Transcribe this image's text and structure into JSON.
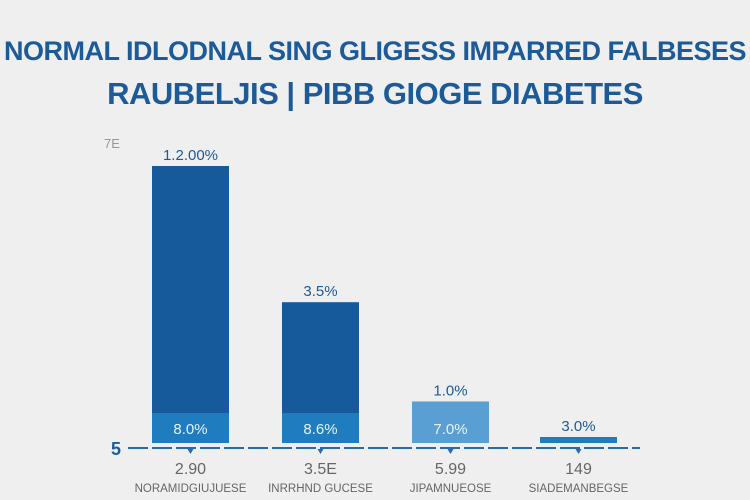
{
  "chart_data": {
    "type": "bar",
    "title_line1": "NORMAL IDLODNAL SING GLIGESS IMPARRED FALBESES",
    "title_line2": "RAUBELJIS | PIBB GIOGE   DIABETES",
    "ytick_top": "7E",
    "ytick_base": "5",
    "ylim": [
      0,
      12
    ],
    "categories": [
      "NORAMIDGIUJUESE",
      "INRRHND GUCESE",
      "JIPAMNUEOSE",
      "SIADEMANBEGSE"
    ],
    "numbers": [
      "2.90",
      "3.5E",
      "5.99",
      "149"
    ],
    "values": [
      12.0,
      6.1,
      1.8,
      0.26
    ],
    "lower_segment": [
      1.3,
      1.3,
      0,
      0
    ],
    "top_labels": [
      "1.2.00%",
      "3.5%",
      "1.0%",
      "3.0%"
    ],
    "inner_labels": [
      "8.0%",
      "8.6%",
      "7.0%",
      ""
    ],
    "colors": {
      "dark": "#175a9c",
      "mid": "#1f7dbf",
      "light": "#5a9fd4",
      "axis": "#2a6aa8",
      "text": "#1d5a98",
      "label": "#666666"
    }
  }
}
